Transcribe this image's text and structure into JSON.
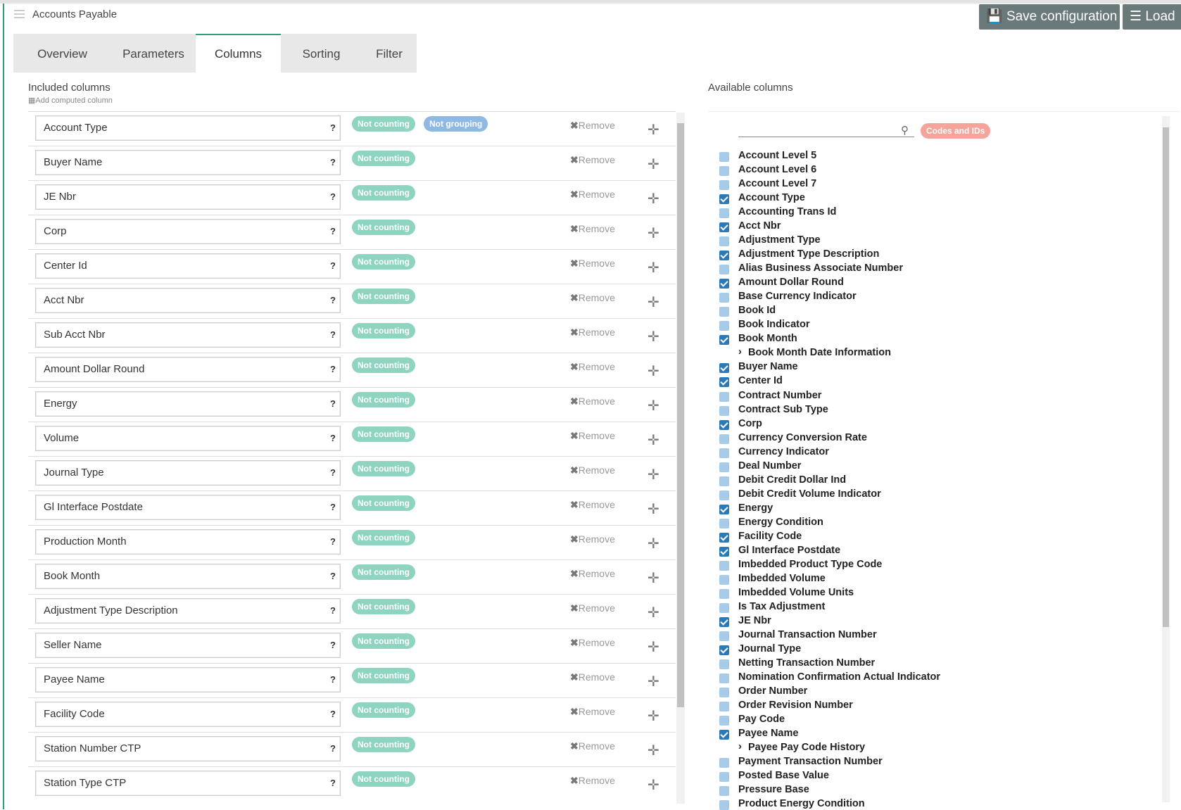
{
  "header": {
    "title": "Accounts Payable",
    "buttons": [
      "Save configuration",
      "Load"
    ]
  },
  "tabs": {
    "items": [
      "Overview",
      "Parameters",
      "Columns",
      "Sorting",
      "Filter"
    ],
    "active": 2
  },
  "included": {
    "title": "Included columns",
    "add_link": "Add computed column",
    "help_label": "?",
    "remove_label": "Remove",
    "rows": [
      {
        "name": "Account Type",
        "badges": [
          "Not counting",
          "Not grouping"
        ]
      },
      {
        "name": "Buyer Name",
        "badges": [
          "Not counting"
        ]
      },
      {
        "name": "JE Nbr",
        "badges": [
          "Not counting"
        ]
      },
      {
        "name": "Corp",
        "badges": [
          "Not counting"
        ]
      },
      {
        "name": "Center Id",
        "badges": [
          "Not counting"
        ]
      },
      {
        "name": "Acct Nbr",
        "badges": [
          "Not counting"
        ]
      },
      {
        "name": "Sub Acct Nbr",
        "badges": [
          "Not counting"
        ]
      },
      {
        "name": "Amount Dollar Round",
        "badges": [
          "Not counting"
        ]
      },
      {
        "name": "Energy",
        "badges": [
          "Not counting"
        ]
      },
      {
        "name": "Volume",
        "badges": [
          "Not counting"
        ]
      },
      {
        "name": "Journal Type",
        "badges": [
          "Not counting"
        ]
      },
      {
        "name": "Gl Interface Postdate",
        "badges": [
          "Not counting"
        ]
      },
      {
        "name": "Production Month",
        "badges": [
          "Not counting"
        ]
      },
      {
        "name": "Book Month",
        "badges": [
          "Not counting"
        ]
      },
      {
        "name": "Adjustment Type Description",
        "badges": [
          "Not counting"
        ]
      },
      {
        "name": "Seller Name",
        "badges": [
          "Not counting"
        ]
      },
      {
        "name": "Payee Name",
        "badges": [
          "Not counting"
        ]
      },
      {
        "name": "Facility Code",
        "badges": [
          "Not counting"
        ]
      },
      {
        "name": "Station Number CTP",
        "badges": [
          "Not counting"
        ]
      },
      {
        "name": "Station Type CTP",
        "badges": [
          "Not counting"
        ]
      }
    ]
  },
  "available": {
    "title": "Available columns",
    "filter_chip": "Codes and IDs",
    "items": [
      {
        "label": "Account Level 5",
        "checked": false
      },
      {
        "label": "Account Level 6",
        "checked": false
      },
      {
        "label": "Account Level 7",
        "checked": false
      },
      {
        "label": "Account Type",
        "checked": true
      },
      {
        "label": "Accounting Trans Id",
        "checked": false
      },
      {
        "label": "Acct Nbr",
        "checked": true
      },
      {
        "label": "Adjustment Type",
        "checked": false
      },
      {
        "label": "Adjustment Type Description",
        "checked": true
      },
      {
        "label": "Alias Business Associate Number",
        "checked": false
      },
      {
        "label": "Amount Dollar Round",
        "checked": true
      },
      {
        "label": "Base Currency Indicator",
        "checked": false
      },
      {
        "label": "Book Id",
        "checked": false
      },
      {
        "label": "Book Indicator",
        "checked": false
      },
      {
        "label": "Book Month",
        "checked": true
      },
      {
        "label": "Book Month Date Information",
        "group": true
      },
      {
        "label": "Buyer Name",
        "checked": true
      },
      {
        "label": "Center Id",
        "checked": true
      },
      {
        "label": "Contract Number",
        "checked": false
      },
      {
        "label": "Contract Sub Type",
        "checked": false
      },
      {
        "label": "Corp",
        "checked": true
      },
      {
        "label": "Currency Conversion Rate",
        "checked": false
      },
      {
        "label": "Currency Indicator",
        "checked": false
      },
      {
        "label": "Deal Number",
        "checked": false
      },
      {
        "label": "Debit Credit Dollar Ind",
        "checked": false
      },
      {
        "label": "Debit Credit Volume Indicator",
        "checked": false
      },
      {
        "label": "Energy",
        "checked": true
      },
      {
        "label": "Energy Condition",
        "checked": false
      },
      {
        "label": "Facility Code",
        "checked": true
      },
      {
        "label": "Gl Interface Postdate",
        "checked": true
      },
      {
        "label": "Imbedded Product Type Code",
        "checked": false
      },
      {
        "label": "Imbedded Volume",
        "checked": false
      },
      {
        "label": "Imbedded Volume Units",
        "checked": false
      },
      {
        "label": "Is Tax Adjustment",
        "checked": false
      },
      {
        "label": "JE Nbr",
        "checked": true
      },
      {
        "label": "Journal Transaction Number",
        "checked": false
      },
      {
        "label": "Journal Type",
        "checked": true
      },
      {
        "label": "Netting Transaction Number",
        "checked": false
      },
      {
        "label": "Nomination Confirmation Actual Indicator",
        "checked": false
      },
      {
        "label": "Order Number",
        "checked": false
      },
      {
        "label": "Order Revision Number",
        "checked": false
      },
      {
        "label": "Pay Code",
        "checked": false
      },
      {
        "label": "Payee Name",
        "checked": true
      },
      {
        "label": "Payee Pay Code History",
        "group": true
      },
      {
        "label": "Payment Transaction Number",
        "checked": false
      },
      {
        "label": "Posted Base Value",
        "checked": false
      },
      {
        "label": "Pressure Base",
        "checked": false
      },
      {
        "label": "Product Energy Condition",
        "checked": false
      }
    ]
  }
}
